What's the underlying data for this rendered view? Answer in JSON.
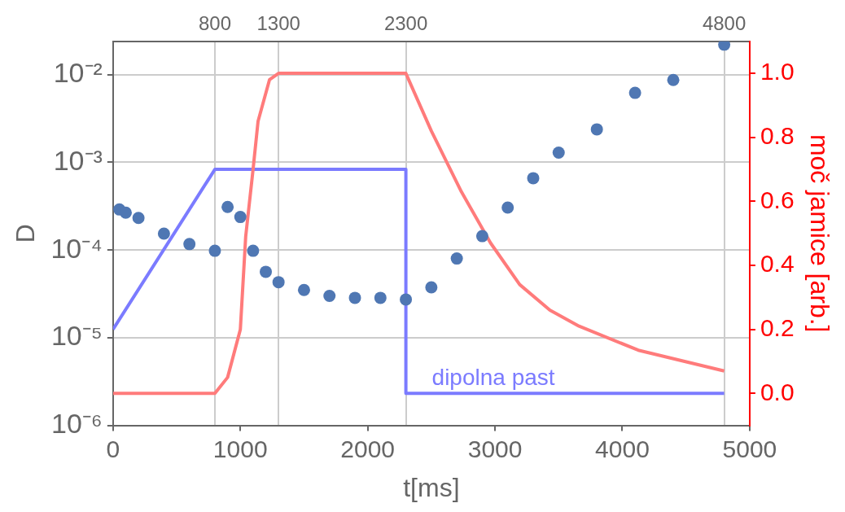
{
  "chart_data": {
    "type": "scatter",
    "xlabel": "t[ms]",
    "ylabel": "D",
    "y2label": "moč jamice [arb.]",
    "xlim": [
      0,
      5000
    ],
    "xticks": [
      0,
      1000,
      2000,
      3000,
      4000,
      5000
    ],
    "x2lim": [
      0,
      5000
    ],
    "x2ticks": [
      800,
      1300,
      2300,
      4800
    ],
    "ylim": [
      1e-06,
      0.024
    ],
    "log": "y",
    "yticks": [
      {
        "value": 1e-06,
        "label": "10⁻⁶"
      },
      {
        "value": 1e-05,
        "label": "10⁻⁵"
      },
      {
        "value": 0.0001,
        "label": "10⁻⁴"
      },
      {
        "value": 0.001,
        "label": "10⁻³"
      },
      {
        "value": 0.01,
        "label": "10⁻²"
      }
    ],
    "y2lim": [
      -0.1,
      1.1
    ],
    "y2ticks": [
      {
        "value": 0,
        "label": "0.0"
      },
      {
        "value": 0.2,
        "label": "0.2"
      },
      {
        "value": 0.4,
        "label": "0.4"
      },
      {
        "value": 0.6,
        "label": "0.6"
      },
      {
        "value": 0.8,
        "label": "0.8"
      },
      {
        "value": 1,
        "label": "1.0"
      }
    ],
    "grid": true,
    "legend": false,
    "marker": "circle",
    "series": [
      {
        "color": "#4f77b3",
        "x": [
          50,
          100,
          200,
          400,
          600,
          800,
          900,
          1000,
          1100,
          1200,
          1300,
          1500,
          1700,
          1900,
          2100,
          2300,
          2500,
          2700,
          2900,
          3100,
          3300,
          3500,
          3800,
          4100,
          4400,
          4800
        ],
        "values": [
          0.00029,
          0.000267,
          0.000232,
          0.000154,
          0.000117,
          9.8e-05,
          0.00031,
          0.000238,
          9.8e-05,
          5.65e-05,
          4.3e-05,
          3.5e-05,
          3e-05,
          2.85e-05,
          2.85e-05,
          2.73e-05,
          3.75e-05,
          8e-05,
          0.000144,
          0.000305,
          0.00066,
          0.00129,
          0.00238,
          0.0062,
          0.0087,
          0.022
        ]
      },
      {
        "type": "line",
        "axis": "y2",
        "marker": "none",
        "color": "#ff7b7b",
        "x": [
          0,
          800,
          900,
          1000,
          1042,
          1100,
          1139,
          1229,
          1300,
          2300,
          2500,
          2736,
          2965,
          3194,
          3431,
          3660,
          4125,
          4800
        ],
        "values": [
          0,
          0,
          0.05,
          0.2,
          0.49,
          0.7,
          0.85,
          0.98,
          1,
          1,
          0.82,
          0.63,
          0.47,
          0.34,
          0.26,
          0.21,
          0.135,
          0.07
        ]
      },
      {
        "type": "line",
        "axis": "y2",
        "marker": "none",
        "name": "dipolna past",
        "color": "#7b7bff",
        "x": [
          0,
          800,
          2300,
          2300,
          4800
        ],
        "values": [
          0.2,
          0.7,
          0.7,
          0,
          0
        ]
      }
    ]
  }
}
